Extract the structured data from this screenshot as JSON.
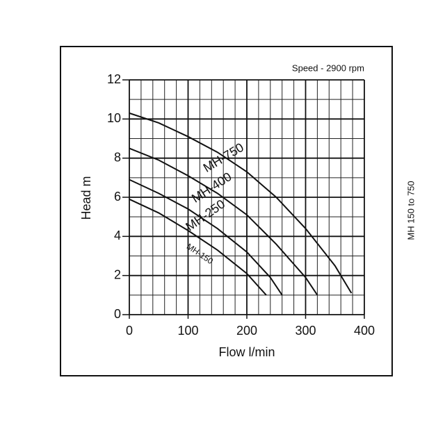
{
  "chart_data": {
    "type": "line",
    "annotation": "Speed - 2900 rpm",
    "side_label": "MH 150 to 750",
    "x_label": "Flow l/min",
    "y_label": "Head m",
    "xlim": [
      0,
      400
    ],
    "xticks": [
      0,
      100,
      200,
      300,
      400
    ],
    "ylim": [
      0,
      12
    ],
    "yticks": [
      0,
      2,
      4,
      6,
      8,
      10,
      12
    ],
    "grid": true,
    "series": [
      {
        "name": "MH-750",
        "color": "#111111",
        "x": [
          0,
          50,
          100,
          150,
          200,
          250,
          300,
          350,
          378
        ],
        "values": [
          10.3,
          9.8,
          9.1,
          8.3,
          7.3,
          6.0,
          4.4,
          2.5,
          1.1
        ]
      },
      {
        "name": "MH-400",
        "color": "#111111",
        "x": [
          0,
          50,
          100,
          150,
          200,
          250,
          300,
          320
        ],
        "values": [
          8.5,
          7.9,
          7.1,
          6.2,
          5.1,
          3.6,
          1.9,
          1.0
        ]
      },
      {
        "name": "MH-250",
        "color": "#111111",
        "x": [
          0,
          50,
          100,
          150,
          200,
          240,
          260
        ],
        "values": [
          6.9,
          6.2,
          5.4,
          4.4,
          3.2,
          1.9,
          1.0
        ]
      },
      {
        "name": "MH-150",
        "color": "#111111",
        "x": [
          0,
          50,
          100,
          150,
          200,
          233
        ],
        "values": [
          5.9,
          5.2,
          4.3,
          3.3,
          2.1,
          1.0
        ]
      }
    ]
  }
}
